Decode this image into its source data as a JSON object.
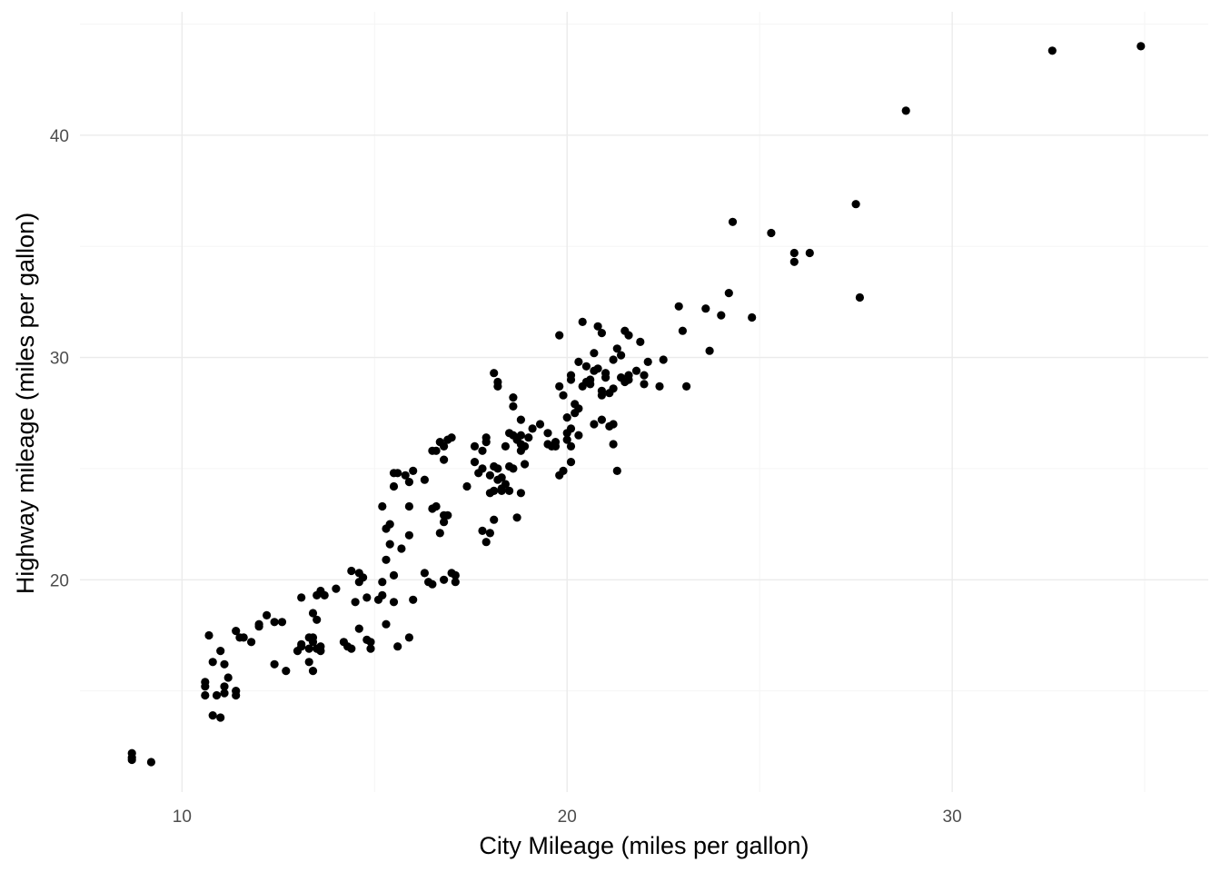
{
  "colors": {
    "background": "#ffffff",
    "grid_major": "#ebebeb",
    "grid_minor": "#f5f5f5",
    "point": "#000000",
    "tick_text": "#4d4d4d",
    "title_text": "#000000"
  },
  "chart_data": {
    "type": "scatter",
    "title": "",
    "xlabel": "City Mileage (miles per gallon)",
    "ylabel": "Highway mileage (miles per gallon)",
    "xlim": [
      7.35,
      36.65
    ],
    "ylim": [
      10.45,
      45.55
    ],
    "x_ticks": [
      10,
      20,
      30
    ],
    "y_ticks": [
      20,
      30,
      40
    ],
    "x_tick_labels": [
      "10",
      "20",
      "30"
    ],
    "y_tick_labels": [
      "20",
      "30",
      "40"
    ],
    "grid": true,
    "legend": "none",
    "points": [
      [
        8.7,
        12.2
      ],
      [
        8.7,
        12.0
      ],
      [
        8.7,
        11.9
      ],
      [
        9.2,
        11.8
      ],
      [
        10.6,
        15.4
      ],
      [
        10.6,
        15.2
      ],
      [
        10.6,
        14.8
      ],
      [
        10.9,
        14.8
      ],
      [
        11.1,
        14.9
      ],
      [
        11.1,
        15.2
      ],
      [
        11.4,
        15.0
      ],
      [
        11.4,
        14.8
      ],
      [
        11.2,
        15.6
      ],
      [
        11.1,
        16.2
      ],
      [
        11.0,
        16.8
      ],
      [
        10.8,
        16.3
      ],
      [
        10.7,
        17.5
      ],
      [
        11.4,
        17.7
      ],
      [
        11.5,
        17.4
      ],
      [
        11.6,
        17.4
      ],
      [
        11.8,
        17.2
      ],
      [
        12.0,
        18.0
      ],
      [
        12.2,
        18.4
      ],
      [
        12.4,
        18.1
      ],
      [
        12.6,
        18.1
      ],
      [
        12.0,
        17.9
      ],
      [
        10.8,
        13.9
      ],
      [
        11.0,
        13.8
      ],
      [
        12.4,
        16.2
      ],
      [
        12.7,
        15.9
      ],
      [
        13.0,
        16.8
      ],
      [
        13.1,
        17.1
      ],
      [
        13.1,
        17.0
      ],
      [
        13.3,
        17.4
      ],
      [
        13.4,
        17.4
      ],
      [
        13.4,
        17.2
      ],
      [
        13.3,
        16.9
      ],
      [
        13.5,
        16.9
      ],
      [
        13.6,
        17.0
      ],
      [
        13.6,
        16.8
      ],
      [
        13.3,
        16.3
      ],
      [
        13.4,
        15.9
      ],
      [
        13.4,
        18.5
      ],
      [
        13.5,
        18.2
      ],
      [
        13.6,
        19.5
      ],
      [
        13.5,
        19.3
      ],
      [
        13.7,
        19.3
      ],
      [
        13.1,
        19.2
      ],
      [
        14.0,
        19.6
      ],
      [
        14.2,
        17.2
      ],
      [
        14.3,
        17.0
      ],
      [
        14.4,
        16.9
      ],
      [
        14.4,
        20.4
      ],
      [
        14.6,
        20.3
      ],
      [
        14.7,
        20.1
      ],
      [
        14.6,
        19.9
      ],
      [
        14.5,
        19.0
      ],
      [
        14.8,
        19.2
      ],
      [
        14.6,
        17.8
      ],
      [
        14.8,
        17.3
      ],
      [
        14.9,
        16.9
      ],
      [
        14.9,
        17.2
      ],
      [
        15.1,
        19.1
      ],
      [
        15.2,
        19.3
      ],
      [
        15.2,
        19.9
      ],
      [
        15.3,
        20.9
      ],
      [
        15.4,
        21.6
      ],
      [
        15.3,
        22.3
      ],
      [
        15.4,
        22.5
      ],
      [
        15.2,
        23.3
      ],
      [
        15.5,
        24.2
      ],
      [
        15.5,
        24.8
      ],
      [
        15.6,
        24.8
      ],
      [
        15.8,
        24.7
      ],
      [
        15.9,
        24.4
      ],
      [
        16.0,
        24.9
      ],
      [
        15.9,
        23.3
      ],
      [
        15.7,
        21.4
      ],
      [
        15.9,
        22.0
      ],
      [
        15.5,
        20.2
      ],
      [
        15.5,
        19.0
      ],
      [
        15.3,
        18.0
      ],
      [
        15.6,
        17.0
      ],
      [
        15.9,
        17.4
      ],
      [
        16.0,
        19.1
      ],
      [
        16.3,
        20.3
      ],
      [
        16.5,
        23.2
      ],
      [
        16.6,
        23.3
      ],
      [
        16.8,
        22.9
      ],
      [
        16.8,
        22.6
      ],
      [
        16.9,
        22.9
      ],
      [
        16.7,
        22.1
      ],
      [
        16.6,
        25.8
      ],
      [
        16.7,
        26.2
      ],
      [
        16.8,
        26.0
      ],
      [
        16.8,
        25.4
      ],
      [
        16.9,
        26.3
      ],
      [
        17.0,
        26.4
      ],
      [
        16.5,
        25.8
      ],
      [
        16.3,
        24.5
      ],
      [
        16.4,
        19.9
      ],
      [
        16.5,
        19.8
      ],
      [
        16.8,
        20.0
      ],
      [
        17.0,
        20.3
      ],
      [
        17.1,
        19.9
      ],
      [
        17.1,
        20.2
      ],
      [
        17.4,
        24.2
      ],
      [
        17.6,
        26.0
      ],
      [
        17.8,
        25.8
      ],
      [
        17.9,
        26.2
      ],
      [
        17.9,
        26.4
      ],
      [
        17.8,
        25.0
      ],
      [
        17.6,
        25.3
      ],
      [
        17.7,
        24.8
      ],
      [
        18.1,
        25.1
      ],
      [
        18.2,
        24.5
      ],
      [
        18.5,
        25.1
      ],
      [
        18.4,
        24.3
      ],
      [
        18.3,
        24.0
      ],
      [
        18.3,
        24.1
      ],
      [
        17.8,
        22.2
      ],
      [
        18.0,
        22.1
      ],
      [
        17.9,
        21.7
      ],
      [
        18.0,
        23.9
      ],
      [
        18.3,
        24.6
      ],
      [
        18.2,
        25.0
      ],
      [
        18.4,
        26.0
      ],
      [
        18.5,
        26.6
      ],
      [
        18.6,
        26.5
      ],
      [
        18.7,
        26.3
      ],
      [
        18.8,
        26.1
      ],
      [
        18.8,
        25.8
      ],
      [
        18.9,
        25.2
      ],
      [
        18.6,
        25.0
      ],
      [
        18.5,
        24.0
      ],
      [
        18.8,
        23.9
      ],
      [
        18.7,
        22.8
      ],
      [
        18.6,
        27.8
      ],
      [
        18.8,
        27.2
      ],
      [
        18.8,
        26.5
      ],
      [
        18.9,
        26.0
      ],
      [
        19.0,
        26.4
      ],
      [
        19.1,
        26.8
      ],
      [
        19.3,
        27.0
      ],
      [
        19.5,
        26.1
      ],
      [
        19.6,
        26.0
      ],
      [
        19.7,
        26.2
      ],
      [
        19.8,
        24.7
      ],
      [
        19.9,
        24.9
      ],
      [
        20.1,
        25.3
      ],
      [
        19.5,
        26.6
      ],
      [
        19.7,
        26.0
      ],
      [
        20.0,
        26.3
      ],
      [
        20.1,
        26.8
      ],
      [
        20.2,
        27.9
      ],
      [
        20.3,
        27.7
      ],
      [
        20.1,
        29.2
      ],
      [
        19.8,
        28.7
      ],
      [
        18.2,
        28.7
      ],
      [
        18.2,
        28.9
      ],
      [
        18.1,
        29.3
      ],
      [
        18.6,
        28.2
      ],
      [
        18.1,
        24.0
      ],
      [
        18.1,
        22.7
      ],
      [
        18.0,
        24.7
      ],
      [
        20.0,
        26.6
      ],
      [
        20.1,
        26.0
      ],
      [
        20.3,
        26.5
      ],
      [
        20.0,
        27.3
      ],
      [
        20.2,
        27.5
      ],
      [
        19.9,
        28.3
      ],
      [
        20.4,
        28.7
      ],
      [
        20.9,
        28.5
      ],
      [
        20.9,
        28.3
      ],
      [
        21.1,
        28.4
      ],
      [
        21.2,
        28.6
      ],
      [
        21.0,
        29.1
      ],
      [
        21.2,
        29.9
      ],
      [
        21.3,
        30.4
      ],
      [
        21.5,
        31.2
      ],
      [
        21.6,
        31.0
      ],
      [
        21.4,
        30.1
      ],
      [
        21.6,
        29.2
      ],
      [
        21.4,
        29.1
      ],
      [
        21.5,
        28.9
      ],
      [
        21.8,
        29.4
      ],
      [
        21.6,
        29.0
      ],
      [
        21.2,
        27.0
      ],
      [
        21.1,
        26.9
      ],
      [
        20.9,
        27.2
      ],
      [
        20.7,
        27.0
      ],
      [
        21.2,
        26.1
      ],
      [
        21.3,
        24.9
      ],
      [
        21.0,
        29.3
      ],
      [
        20.8,
        29.5
      ],
      [
        20.6,
        28.8
      ],
      [
        20.6,
        29.0
      ],
      [
        20.8,
        31.4
      ],
      [
        20.9,
        31.1
      ],
      [
        20.4,
        31.6
      ],
      [
        20.7,
        30.2
      ],
      [
        19.8,
        31.0
      ],
      [
        20.3,
        29.8
      ],
      [
        20.1,
        29.0
      ],
      [
        20.5,
        28.9
      ],
      [
        20.5,
        29.6
      ],
      [
        20.7,
        29.4
      ],
      [
        21.9,
        30.7
      ],
      [
        22.0,
        29.2
      ],
      [
        22.0,
        28.8
      ],
      [
        22.1,
        29.8
      ],
      [
        22.4,
        28.7
      ],
      [
        22.5,
        29.9
      ],
      [
        22.9,
        32.3
      ],
      [
        23.0,
        31.2
      ],
      [
        23.1,
        28.7
      ],
      [
        23.6,
        32.2
      ],
      [
        23.7,
        30.3
      ],
      [
        24.0,
        31.9
      ],
      [
        24.2,
        32.9
      ],
      [
        24.3,
        36.1
      ],
      [
        24.8,
        31.8
      ],
      [
        25.3,
        35.6
      ],
      [
        25.9,
        34.7
      ],
      [
        25.9,
        34.3
      ],
      [
        26.3,
        34.7
      ],
      [
        27.5,
        36.9
      ],
      [
        27.6,
        32.7
      ],
      [
        28.8,
        41.1
      ],
      [
        32.6,
        43.8
      ],
      [
        34.9,
        44.0
      ]
    ]
  }
}
